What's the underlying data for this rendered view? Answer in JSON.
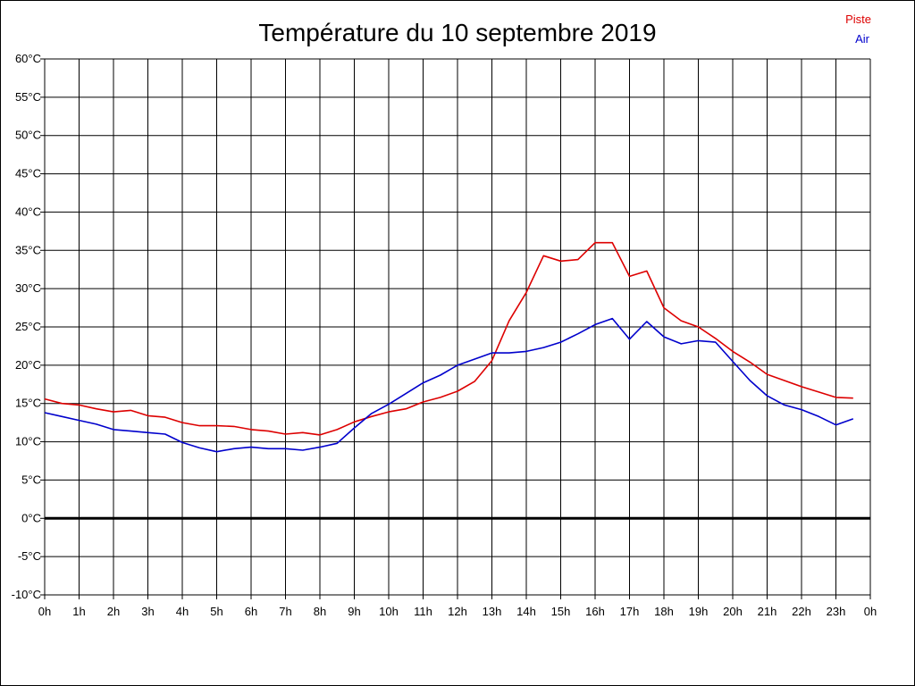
{
  "chart_data": {
    "type": "line",
    "title": "Température du 10 septembre 2019",
    "xlabel": "",
    "ylabel": "",
    "xlim": [
      0,
      24
    ],
    "ylim": [
      -10,
      60
    ],
    "grid": true,
    "legend_position": "top-right",
    "y_ticks": [
      {
        "value": 60,
        "label": "60°C"
      },
      {
        "value": 55,
        "label": "55°C"
      },
      {
        "value": 50,
        "label": "50°C"
      },
      {
        "value": 45,
        "label": "45°C"
      },
      {
        "value": 40,
        "label": "40°C"
      },
      {
        "value": 35,
        "label": "35°C"
      },
      {
        "value": 30,
        "label": "30°C"
      },
      {
        "value": 25,
        "label": "25°C"
      },
      {
        "value": 20,
        "label": "20°C"
      },
      {
        "value": 15,
        "label": "15°C"
      },
      {
        "value": 10,
        "label": "10°C"
      },
      {
        "value": 5,
        "label": "5°C"
      },
      {
        "value": 0,
        "label": "0°C"
      },
      {
        "value": -5,
        "label": "-5°C"
      },
      {
        "value": -10,
        "label": "-10°C"
      }
    ],
    "x_ticks": [
      {
        "value": 0,
        "label": "0h"
      },
      {
        "value": 1,
        "label": "1h"
      },
      {
        "value": 2,
        "label": "2h"
      },
      {
        "value": 3,
        "label": "3h"
      },
      {
        "value": 4,
        "label": "4h"
      },
      {
        "value": 5,
        "label": "5h"
      },
      {
        "value": 6,
        "label": "6h"
      },
      {
        "value": 7,
        "label": "7h"
      },
      {
        "value": 8,
        "label": "8h"
      },
      {
        "value": 9,
        "label": "9h"
      },
      {
        "value": 10,
        "label": "10h"
      },
      {
        "value": 11,
        "label": "11h"
      },
      {
        "value": 12,
        "label": "12h"
      },
      {
        "value": 13,
        "label": "13h"
      },
      {
        "value": 14,
        "label": "14h"
      },
      {
        "value": 15,
        "label": "15h"
      },
      {
        "value": 16,
        "label": "16h"
      },
      {
        "value": 17,
        "label": "17h"
      },
      {
        "value": 18,
        "label": "18h"
      },
      {
        "value": 19,
        "label": "19h"
      },
      {
        "value": 20,
        "label": "20h"
      },
      {
        "value": 21,
        "label": "21h"
      },
      {
        "value": 22,
        "label": "22h"
      },
      {
        "value": 23,
        "label": "23h"
      },
      {
        "value": 24,
        "label": "0h"
      }
    ],
    "zero_line": 0,
    "series": [
      {
        "name": "Piste",
        "color": "#dd0000",
        "x": [
          0,
          0.5,
          1,
          1.5,
          2,
          2.5,
          3,
          3.5,
          4,
          4.5,
          5,
          5.5,
          6,
          6.5,
          7,
          7.5,
          8,
          8.5,
          9,
          9.5,
          10,
          10.5,
          11,
          11.5,
          12,
          12.5,
          13,
          13.5,
          14,
          14.5,
          15,
          15.5,
          16,
          16.5,
          17,
          17.5,
          18,
          18.5,
          19,
          19.5,
          20,
          20.5,
          21,
          21.5,
          22,
          22.5,
          23,
          23.5
        ],
        "y": [
          15.6,
          15.0,
          14.8,
          14.3,
          13.9,
          14.1,
          13.4,
          13.2,
          12.5,
          12.1,
          12.1,
          12.0,
          11.6,
          11.4,
          11.0,
          11.2,
          10.9,
          11.6,
          12.6,
          13.3,
          13.9,
          14.3,
          15.2,
          15.8,
          16.6,
          17.9,
          20.6,
          25.8,
          29.5,
          34.3,
          33.6,
          33.8,
          36.0,
          36.0,
          31.6,
          32.3,
          27.5,
          25.8,
          25.0,
          23.5,
          21.8,
          20.4,
          18.8,
          18.0,
          17.2,
          16.5,
          15.8,
          15.7
        ]
      },
      {
        "name": "Air",
        "color": "#0000cc",
        "x": [
          0,
          0.5,
          1,
          1.5,
          2,
          2.5,
          3,
          3.5,
          4,
          4.5,
          5,
          5.5,
          6,
          6.5,
          7,
          7.5,
          8,
          8.5,
          9,
          9.5,
          10,
          10.5,
          11,
          11.5,
          12,
          12.5,
          13,
          13.5,
          14,
          14.5,
          15,
          15.5,
          16,
          16.5,
          17,
          17.5,
          18,
          18.5,
          19,
          19.5,
          20,
          20.5,
          21,
          21.5,
          22,
          22.5,
          23,
          23.5
        ],
        "y": [
          13.8,
          13.3,
          12.8,
          12.3,
          11.6,
          11.4,
          11.2,
          11.0,
          9.9,
          9.2,
          8.7,
          9.1,
          9.3,
          9.1,
          9.1,
          8.9,
          9.3,
          9.8,
          11.8,
          13.7,
          14.9,
          16.3,
          17.7,
          18.7,
          20.0,
          20.8,
          21.6,
          21.6,
          21.8,
          22.3,
          23.0,
          24.1,
          25.3,
          26.1,
          23.4,
          25.7,
          23.7,
          22.8,
          23.2,
          23.0,
          20.5,
          18.0,
          16.0,
          14.8,
          14.2,
          13.3,
          12.2,
          13.0
        ]
      }
    ]
  }
}
